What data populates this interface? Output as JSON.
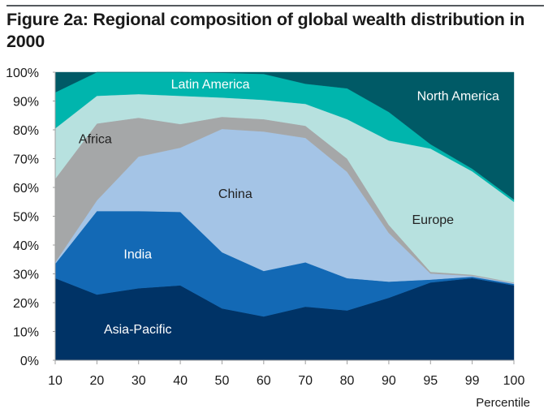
{
  "chart_data": {
    "type": "area",
    "stacked": true,
    "normalized_percent": true,
    "title": "Figure 2a: Regional composition of global wealth distribution in 2000",
    "xlabel": "Percentile",
    "ylabel": "",
    "categories": [
      "10",
      "20",
      "30",
      "40",
      "50",
      "60",
      "70",
      "80",
      "90",
      "95",
      "99",
      "100"
    ],
    "ylim": [
      0,
      100
    ],
    "yticks": [
      "0%",
      "10%",
      "20%",
      "30%",
      "40%",
      "50%",
      "60%",
      "70%",
      "80%",
      "90%",
      "100%"
    ],
    "ytick_values": [
      0,
      10,
      20,
      30,
      40,
      50,
      60,
      70,
      80,
      90,
      100
    ],
    "grid": false,
    "legend": "inline labels",
    "series": [
      {
        "name": "Asia-Pacific",
        "color": "#003366",
        "label_color": "#ffffff",
        "values": [
          28.5,
          22.8,
          25.0,
          26.0,
          18.0,
          15.2,
          18.6,
          17.3,
          21.7,
          27.0,
          28.5,
          26.0
        ]
      },
      {
        "name": "India",
        "color": "#1369b5",
        "label_color": "#ffffff",
        "values": [
          5.0,
          29.0,
          26.8,
          25.5,
          19.5,
          15.8,
          15.4,
          11.2,
          5.6,
          1.0,
          0.5,
          0.5
        ]
      },
      {
        "name": "China",
        "color": "#a4c4e6",
        "label_color": "#222222",
        "values": [
          0.5,
          3.7,
          18.9,
          22.3,
          42.8,
          48.4,
          43.2,
          36.9,
          16.9,
          2.1,
          0.3,
          0.3
        ]
      },
      {
        "name": "Africa",
        "color": "#a5a7a8",
        "label_color": "#222222",
        "values": [
          29.0,
          26.7,
          13.5,
          8.2,
          4.2,
          4.3,
          4.2,
          4.6,
          2.8,
          0.6,
          0.4,
          0.2
        ]
      },
      {
        "name": "Europe",
        "color": "#b7e1df",
        "label_color": "#222222",
        "values": [
          17.5,
          9.6,
          8.2,
          9.8,
          6.7,
          6.7,
          7.6,
          13.7,
          29.3,
          42.8,
          35.9,
          28.0
        ]
      },
      {
        "name": "Latin America",
        "color": "#00b5ad",
        "label_color": "#ffffff",
        "values": [
          12.5,
          8.2,
          7.6,
          8.2,
          8.6,
          9.0,
          7.0,
          10.7,
          9.9,
          1.5,
          0.9,
          0.8
        ]
      },
      {
        "name": "North America",
        "color": "#005a66",
        "label_color": "#ffffff",
        "values": [
          7.0,
          0.0,
          0.0,
          0.0,
          0.2,
          0.6,
          4.0,
          5.6,
          13.8,
          25.0,
          33.5,
          44.2
        ]
      }
    ],
    "annotations": [
      {
        "series": "Latin America",
        "text": "Latin America",
        "at_category": "40",
        "at_value": 96
      },
      {
        "series": "North America",
        "text": "North America",
        "at_category": "95",
        "at_value": 92
      },
      {
        "series": "Africa",
        "text": "Africa",
        "at_category": "20",
        "at_value": 77
      },
      {
        "series": "China",
        "text": "China",
        "at_category": "60",
        "at_value": 58
      },
      {
        "series": "Europe",
        "text": "Europe",
        "at_category": "95",
        "at_value": 49
      },
      {
        "series": "India",
        "text": "India",
        "at_category": "30",
        "at_value": 37
      },
      {
        "series": "Asia-Pacific",
        "text": "Asia-Pacific",
        "at_category": "30",
        "at_value": 11
      }
    ]
  }
}
